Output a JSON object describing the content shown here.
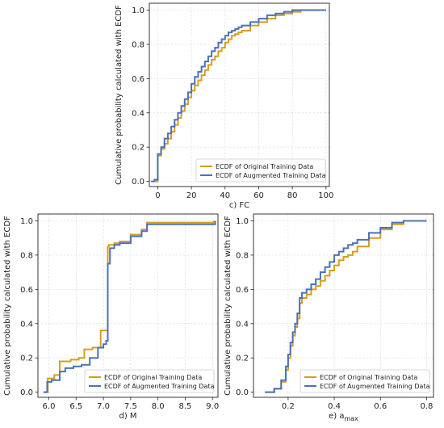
{
  "colors": {
    "original": "#d69e1c",
    "augmented": "#4a72b8"
  },
  "chart_data": [
    {
      "type": "line",
      "xlabel": "c) FC",
      "ylabel": "Cumulative probability calculated with ECDF",
      "xlim": [
        -5,
        102
      ],
      "ylim": [
        -0.03,
        1.04
      ],
      "xticks": [
        0,
        20,
        40,
        60,
        80,
        100
      ],
      "xtick_labels": [
        "0",
        "20",
        "40",
        "60",
        "80",
        "100"
      ],
      "yticks": [
        0.0,
        0.2,
        0.4,
        0.6,
        0.8,
        1.0
      ],
      "ytick_labels": [
        "0.0",
        "0.2",
        "0.4",
        "0.6",
        "0.8",
        "1.0"
      ],
      "grid": true,
      "legend_position": "lower-right",
      "series": [
        {
          "name": "ECDF of Original Training Data",
          "color": "#d69e1c",
          "x": [
            -2,
            0,
            0,
            2,
            4,
            6,
            8,
            10,
            12,
            14,
            16,
            18,
            20,
            22,
            24,
            26,
            28,
            30,
            32,
            34,
            36,
            38,
            40,
            42,
            44,
            46,
            48,
            50,
            55,
            60,
            65,
            70,
            75,
            80,
            85,
            100
          ],
          "y": [
            0.0,
            0.02,
            0.15,
            0.19,
            0.22,
            0.25,
            0.29,
            0.33,
            0.37,
            0.41,
            0.45,
            0.49,
            0.53,
            0.56,
            0.59,
            0.62,
            0.65,
            0.68,
            0.71,
            0.73,
            0.76,
            0.78,
            0.81,
            0.83,
            0.85,
            0.86,
            0.87,
            0.88,
            0.91,
            0.93,
            0.95,
            0.97,
            0.98,
            0.99,
            1.0,
            1.0
          ]
        },
        {
          "name": "ECDF of Augmented Training Data",
          "color": "#4a72b8",
          "x": [
            -4,
            -2,
            0,
            0,
            2,
            4,
            6,
            8,
            10,
            12,
            14,
            16,
            18,
            20,
            22,
            24,
            26,
            28,
            30,
            32,
            34,
            36,
            38,
            40,
            42,
            44,
            46,
            48,
            50,
            55,
            60,
            65,
            70,
            75,
            80,
            85,
            100
          ],
          "y": [
            0.0,
            0.01,
            0.02,
            0.16,
            0.2,
            0.25,
            0.28,
            0.32,
            0.36,
            0.4,
            0.44,
            0.48,
            0.52,
            0.57,
            0.61,
            0.64,
            0.67,
            0.7,
            0.73,
            0.76,
            0.78,
            0.81,
            0.83,
            0.85,
            0.87,
            0.88,
            0.89,
            0.9,
            0.91,
            0.93,
            0.95,
            0.97,
            0.98,
            0.99,
            1.0,
            1.0,
            1.0
          ]
        }
      ]
    },
    {
      "type": "line",
      "xlabel": "d) M",
      "ylabel": "Cumulative probability calculated with ECDF",
      "xlim": [
        5.8,
        9.1
      ],
      "ylim": [
        -0.03,
        1.04
      ],
      "xticks": [
        6.0,
        6.5,
        7.0,
        7.5,
        8.0,
        8.5,
        9.0
      ],
      "xtick_labels": [
        "6.0",
        "6.5",
        "7.0",
        "7.5",
        "8.0",
        "8.5",
        "9.0"
      ],
      "yticks": [
        0.0,
        0.2,
        0.4,
        0.6,
        0.8,
        1.0
      ],
      "ytick_labels": [
        "0.0",
        "0.2",
        "0.4",
        "0.6",
        "0.8",
        "1.0"
      ],
      "grid": true,
      "legend_position": "lower-right",
      "series": [
        {
          "name": "ECDF of Original Training Data",
          "color": "#d69e1c",
          "x": [
            5.92,
            5.98,
            6.1,
            6.2,
            6.4,
            6.55,
            6.65,
            6.8,
            6.95,
            7.05,
            7.08,
            7.1,
            7.2,
            7.3,
            7.5,
            7.7,
            7.8,
            8.5,
            8.95,
            9.02
          ],
          "y": [
            0.0,
            0.08,
            0.1,
            0.18,
            0.19,
            0.2,
            0.25,
            0.26,
            0.36,
            0.36,
            0.85,
            0.86,
            0.87,
            0.88,
            0.92,
            0.95,
            0.99,
            0.99,
            0.99,
            1.0
          ]
        },
        {
          "name": "ECDF of Augmented Training Data",
          "color": "#4a72b8",
          "x": [
            5.9,
            5.97,
            6.05,
            6.2,
            6.3,
            6.45,
            6.6,
            6.75,
            6.9,
            7.0,
            7.05,
            7.08,
            7.12,
            7.2,
            7.3,
            7.5,
            7.7,
            7.8,
            8.5,
            8.95,
            9.05
          ],
          "y": [
            0.0,
            0.06,
            0.07,
            0.12,
            0.14,
            0.15,
            0.16,
            0.2,
            0.26,
            0.28,
            0.3,
            0.75,
            0.84,
            0.86,
            0.87,
            0.91,
            0.94,
            0.98,
            0.98,
            0.98,
            1.0
          ]
        }
      ]
    },
    {
      "type": "line",
      "xlabel": "e) a",
      "xlabel_sub": "max",
      "ylabel": "Cumulative probability calculated with ECDF",
      "xlim": [
        0.05,
        0.83
      ],
      "ylim": [
        -0.03,
        1.04
      ],
      "xticks": [
        0.2,
        0.4,
        0.6,
        0.8
      ],
      "xtick_labels": [
        "0.2",
        "0.4",
        "0.6",
        "0.8"
      ],
      "yticks": [
        0.0,
        0.2,
        0.4,
        0.6,
        0.8,
        1.0
      ],
      "ytick_labels": [
        "0.0",
        "0.2",
        "0.4",
        "0.6",
        "0.8",
        "1.0"
      ],
      "grid": true,
      "legend_position": "lower-right",
      "series": [
        {
          "name": "ECDF of Original Training Data",
          "color": "#d69e1c",
          "x": [
            0.1,
            0.14,
            0.17,
            0.19,
            0.2,
            0.21,
            0.22,
            0.23,
            0.24,
            0.25,
            0.26,
            0.28,
            0.3,
            0.32,
            0.34,
            0.36,
            0.38,
            0.4,
            0.42,
            0.44,
            0.46,
            0.48,
            0.5,
            0.55,
            0.6,
            0.65,
            0.7,
            0.8
          ],
          "y": [
            0.0,
            0.02,
            0.06,
            0.13,
            0.2,
            0.27,
            0.33,
            0.38,
            0.43,
            0.52,
            0.55,
            0.57,
            0.6,
            0.62,
            0.65,
            0.68,
            0.71,
            0.74,
            0.77,
            0.79,
            0.8,
            0.82,
            0.85,
            0.9,
            0.95,
            0.98,
            1.0,
            1.0
          ]
        },
        {
          "name": "ECDF of Augmented Training Data",
          "color": "#4a72b8",
          "x": [
            0.1,
            0.14,
            0.17,
            0.19,
            0.2,
            0.21,
            0.22,
            0.23,
            0.24,
            0.25,
            0.26,
            0.28,
            0.3,
            0.32,
            0.34,
            0.36,
            0.38,
            0.4,
            0.42,
            0.44,
            0.46,
            0.48,
            0.5,
            0.55,
            0.6,
            0.65,
            0.7,
            0.8
          ],
          "y": [
            0.0,
            0.02,
            0.07,
            0.15,
            0.22,
            0.29,
            0.35,
            0.4,
            0.46,
            0.55,
            0.58,
            0.6,
            0.63,
            0.66,
            0.7,
            0.73,
            0.76,
            0.8,
            0.82,
            0.84,
            0.86,
            0.87,
            0.89,
            0.93,
            0.96,
            0.99,
            1.0,
            1.0
          ]
        }
      ]
    }
  ]
}
